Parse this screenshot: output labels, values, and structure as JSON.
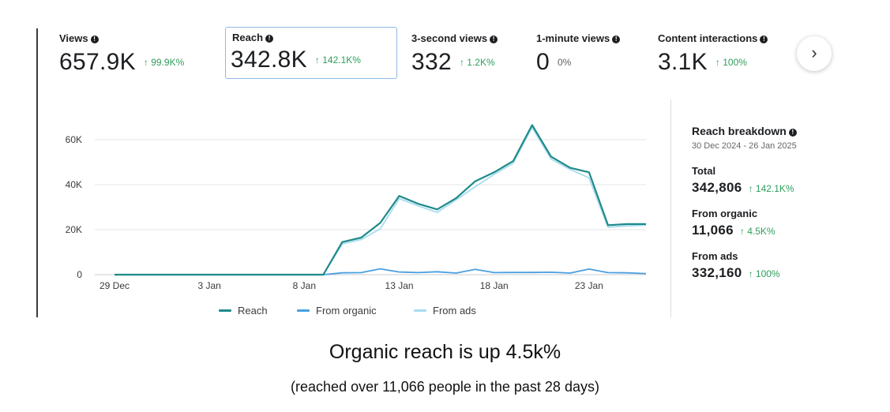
{
  "metrics": [
    {
      "label": "Views",
      "value": "657.9K",
      "delta": "↑ 99.9K%"
    },
    {
      "label": "Reach",
      "value": "342.8K",
      "delta": "↑ 142.1K%"
    },
    {
      "label": "3-second views",
      "value": "332",
      "delta": "↑ 1.2K%"
    },
    {
      "label": "1-minute views",
      "value": "0",
      "delta": "0%"
    },
    {
      "label": "Content interactions",
      "value": "3.1K",
      "delta": "↑ 100%"
    }
  ],
  "icons": {
    "info": "info-icon",
    "next": "chevron-right-icon"
  },
  "glyphs": {
    "info": "!",
    "next": "›"
  },
  "breakdown": {
    "title": "Reach breakdown",
    "range": "30 Dec 2024 - 26 Jan 2025",
    "rows": [
      {
        "label": "Total",
        "value": "342,806",
        "delta": "↑ 142.1K%"
      },
      {
        "label": "From organic",
        "value": "11,066",
        "delta": "↑ 4.5K%"
      },
      {
        "label": "From ads",
        "value": "332,160",
        "delta": "↑ 100%"
      }
    ]
  },
  "caption": {
    "main": "Organic reach is up 4.5k%",
    "sub": "(reached over 11,066 people in the past 28 days)"
  },
  "colors": {
    "reach": "#1f8a8a",
    "organic": "#4a9fe0",
    "ads": "#a8dcef",
    "positive": "#2e9e5b",
    "selected_border": "#8fb9e6"
  },
  "chart_data": {
    "type": "line",
    "title": "",
    "xlabel": "",
    "ylabel": "",
    "x": [
      "29 Dec",
      "30 Dec",
      "31 Dec",
      "1 Jan",
      "2 Jan",
      "3 Jan",
      "4 Jan",
      "5 Jan",
      "6 Jan",
      "7 Jan",
      "8 Jan",
      "9 Jan",
      "10 Jan",
      "11 Jan",
      "12 Jan",
      "13 Jan",
      "14 Jan",
      "15 Jan",
      "16 Jan",
      "17 Jan",
      "18 Jan",
      "19 Jan",
      "20 Jan",
      "21 Jan",
      "22 Jan",
      "23 Jan",
      "24 Jan",
      "25 Jan",
      "26 Jan"
    ],
    "xticks": [
      "29 Dec",
      "3 Jan",
      "8 Jan",
      "13 Jan",
      "18 Jan",
      "23 Jan"
    ],
    "yticks": [
      0,
      20000,
      40000,
      60000
    ],
    "ytick_labels": [
      "0",
      "20K",
      "40K",
      "60K"
    ],
    "ylim": [
      0,
      70000
    ],
    "grid": true,
    "legend": "bottom",
    "series": [
      {
        "name": "Reach",
        "values": [
          0,
          0,
          0,
          0,
          0,
          0,
          0,
          0,
          0,
          0,
          0,
          0,
          14500,
          16500,
          23000,
          35000,
          31500,
          29000,
          34000,
          41500,
          45500,
          50500,
          66500,
          52500,
          47500,
          45500,
          22000,
          22500,
          22500
        ]
      },
      {
        "name": "From organic",
        "values": [
          0,
          0,
          0,
          0,
          0,
          0,
          0,
          0,
          0,
          0,
          0,
          0,
          800,
          900,
          2600,
          1200,
          900,
          1300,
          700,
          2400,
          900,
          1000,
          1000,
          1100,
          700,
          2500,
          900,
          800,
          500
        ]
      },
      {
        "name": "From ads",
        "values": [
          0,
          0,
          0,
          0,
          0,
          0,
          0,
          0,
          0,
          0,
          0,
          0,
          13700,
          15600,
          20400,
          33800,
          30600,
          27700,
          33300,
          39100,
          44600,
          49500,
          65500,
          51400,
          46800,
          43000,
          21100,
          21700,
          22000
        ]
      }
    ]
  }
}
